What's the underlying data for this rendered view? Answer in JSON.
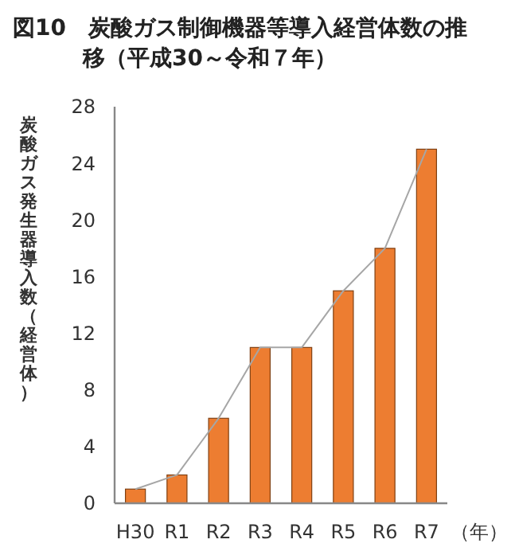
{
  "chart_data": {
    "type": "bar",
    "title": "図10　炭酸ガス制御機器等導入経営体数の推移（平成30～令和７年）",
    "ylabel": "炭酸ガス発生器導入数（経営体）",
    "xlabel": "（年）",
    "categories": [
      "H30",
      "R1",
      "R2",
      "R3",
      "R4",
      "R5",
      "R6",
      "R7"
    ],
    "series": [
      {
        "color": "#ed7d31",
        "values": [
          1,
          2,
          6,
          11,
          11,
          15,
          18,
          25
        ]
      },
      {
        "type": "line",
        "color": "#a6a6a6",
        "values": [
          1,
          2,
          6,
          11,
          11,
          15,
          18,
          25
        ]
      }
    ],
    "ylim": [
      0,
      28
    ],
    "yticks": [
      0,
      4,
      8,
      12,
      16,
      20,
      24,
      28
    ],
    "grid": false,
    "marker": "none",
    "line_style": "solid"
  }
}
